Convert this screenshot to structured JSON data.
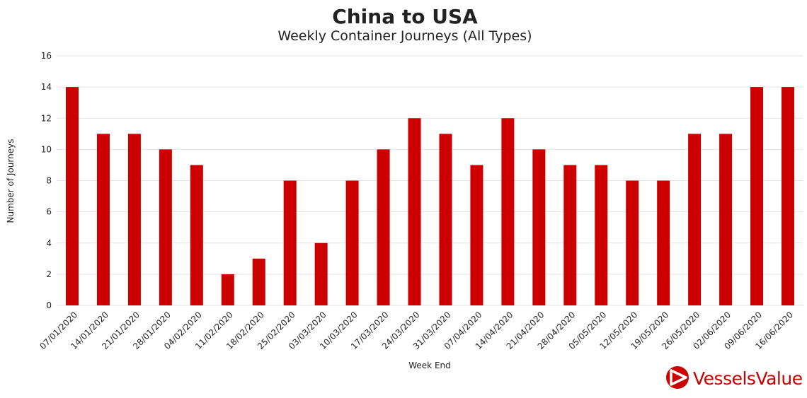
{
  "chart_data": {
    "type": "bar",
    "title": "China to USA",
    "subtitle": "Weekly Container Journeys (All Types)",
    "xlabel": "Week End",
    "ylabel": "Number of Journeys",
    "ylim": [
      0,
      16
    ],
    "yticks": [
      0,
      2,
      4,
      6,
      8,
      10,
      12,
      14,
      16
    ],
    "grid": true,
    "bar_color": "#cc0000",
    "categories": [
      "07/01/2020",
      "14/01/2020",
      "21/01/2020",
      "28/01/2020",
      "04/02/2020",
      "11/02/2020",
      "18/02/2020",
      "25/02/2020",
      "03/03/2020",
      "10/03/2020",
      "17/03/2020",
      "24/03/2020",
      "31/03/2020",
      "07/04/2020",
      "14/04/2020",
      "21/04/2020",
      "28/04/2020",
      "05/05/2020",
      "12/05/2020",
      "19/05/2020",
      "26/05/2020",
      "02/06/2020",
      "09/06/2020",
      "16/06/2020"
    ],
    "values": [
      14,
      11,
      11,
      10,
      9,
      2,
      3,
      8,
      4,
      8,
      10,
      12,
      11,
      9,
      12,
      10,
      9,
      9,
      8,
      8,
      11,
      11,
      14,
      14
    ]
  },
  "logo": {
    "text": "VesselsValue",
    "color": "#cc0000"
  }
}
